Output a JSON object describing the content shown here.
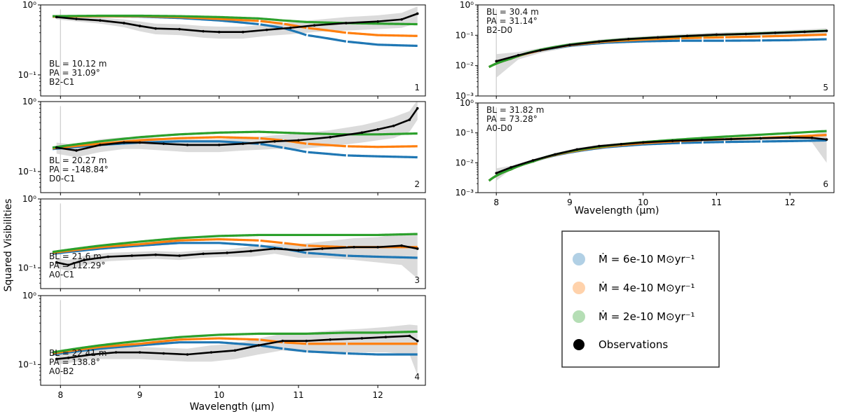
{
  "figure": {
    "ylabel": "Squared Visibilities",
    "xlabel_left": "Wavelength (μm)",
    "xlabel_right": "Wavelength (μm)"
  },
  "legend": {
    "entries": [
      {
        "label": "Ṁ = 6e-10 M⊙yr⁻¹",
        "color": "#1f77b4"
      },
      {
        "label": "Ṁ = 4e-10 M⊙yr⁻¹",
        "color": "#ff7f0e"
      },
      {
        "label": "Ṁ = 2e-10 M⊙yr⁻¹",
        "color": "#2ca02c"
      },
      {
        "label": "Observations",
        "color": "#000000"
      }
    ]
  },
  "chart_data": [
    {
      "type": "line",
      "panel": "1",
      "column": "left",
      "yscale": "log",
      "ylim": [
        0.05,
        1.0
      ],
      "xlim": [
        7.75,
        12.6
      ],
      "yticks": [
        {
          "v": 1.0,
          "label": "10⁰"
        },
        {
          "v": 0.1,
          "label": "10⁻¹"
        }
      ],
      "xticks": [],
      "annotation": [
        "BL = 10.12 m",
        "PA = 31.09°",
        "B2-C1"
      ],
      "series": [
        {
          "name": "Ṁ = 6e-10 M⊙yr⁻¹",
          "x": [
            7.9,
            8.5,
            9.0,
            9.5,
            10.0,
            10.5,
            10.8,
            11.1,
            11.6,
            12.0,
            12.5
          ],
          "y": [
            0.68,
            0.69,
            0.68,
            0.65,
            0.6,
            0.53,
            0.47,
            0.37,
            0.3,
            0.27,
            0.26
          ]
        },
        {
          "name": "Ṁ = 4e-10 M⊙yr⁻¹",
          "x": [
            7.9,
            8.5,
            9.0,
            9.5,
            10.0,
            10.5,
            10.8,
            11.1,
            11.6,
            12.0,
            12.5
          ],
          "y": [
            0.68,
            0.69,
            0.69,
            0.67,
            0.63,
            0.59,
            0.54,
            0.47,
            0.4,
            0.37,
            0.36
          ]
        },
        {
          "name": "Ṁ = 2e-10 M⊙yr⁻¹",
          "x": [
            7.9,
            8.5,
            9.0,
            9.5,
            10.0,
            10.5,
            10.8,
            11.1,
            11.6,
            12.0,
            12.5
          ],
          "y": [
            0.69,
            0.7,
            0.7,
            0.69,
            0.67,
            0.64,
            0.6,
            0.57,
            0.55,
            0.54,
            0.53
          ]
        },
        {
          "name": "Observations",
          "x": [
            7.95,
            8.2,
            8.5,
            8.8,
            9.0,
            9.2,
            9.5,
            9.8,
            10.0,
            10.3,
            10.6,
            10.9,
            11.2,
            11.6,
            12.0,
            12.3,
            12.5
          ],
          "y": [
            0.67,
            0.63,
            0.6,
            0.55,
            0.5,
            0.46,
            0.45,
            0.42,
            0.41,
            0.41,
            0.44,
            0.47,
            0.51,
            0.55,
            0.58,
            0.62,
            0.75
          ],
          "err": [
            0.05,
            0.05,
            0.06,
            0.07,
            0.08,
            0.08,
            0.08,
            0.08,
            0.08,
            0.08,
            0.08,
            0.09,
            0.1,
            0.12,
            0.13,
            0.15,
            0.2
          ]
        }
      ]
    },
    {
      "type": "line",
      "panel": "2",
      "column": "left",
      "yscale": "log",
      "ylim": [
        0.05,
        1.0
      ],
      "xlim": [
        7.75,
        12.6
      ],
      "yticks": [
        {
          "v": 1.0,
          "label": "10⁰"
        },
        {
          "v": 0.1,
          "label": "10⁻¹"
        }
      ],
      "xticks": [],
      "annotation": [
        "BL = 20.27 m",
        "PA = -148.84°",
        "D0-C1"
      ],
      "series": [
        {
          "name": "Ṁ = 6e-10 M⊙yr⁻¹",
          "x": [
            7.9,
            8.5,
            9.0,
            9.5,
            10.0,
            10.5,
            10.8,
            11.1,
            11.6,
            12.0,
            12.5
          ],
          "y": [
            0.21,
            0.24,
            0.26,
            0.27,
            0.27,
            0.25,
            0.22,
            0.19,
            0.17,
            0.165,
            0.16
          ]
        },
        {
          "name": "Ṁ = 4e-10 M⊙yr⁻¹",
          "x": [
            7.9,
            8.5,
            9.0,
            9.5,
            10.0,
            10.5,
            10.8,
            11.1,
            11.6,
            12.0,
            12.5
          ],
          "y": [
            0.215,
            0.25,
            0.28,
            0.3,
            0.31,
            0.3,
            0.28,
            0.25,
            0.23,
            0.225,
            0.23
          ]
        },
        {
          "name": "Ṁ = 2e-10 M⊙yr⁻¹",
          "x": [
            7.9,
            8.5,
            9.0,
            9.5,
            10.0,
            10.5,
            10.8,
            11.1,
            11.6,
            12.0,
            12.5
          ],
          "y": [
            0.22,
            0.27,
            0.31,
            0.34,
            0.36,
            0.37,
            0.36,
            0.35,
            0.34,
            0.34,
            0.35
          ]
        },
        {
          "name": "Observations",
          "x": [
            7.95,
            8.2,
            8.5,
            8.8,
            9.0,
            9.3,
            9.6,
            10.0,
            10.3,
            10.7,
            11.0,
            11.4,
            11.8,
            12.0,
            12.2,
            12.4,
            12.5
          ],
          "y": [
            0.22,
            0.2,
            0.24,
            0.26,
            0.26,
            0.25,
            0.24,
            0.24,
            0.25,
            0.27,
            0.28,
            0.31,
            0.36,
            0.4,
            0.45,
            0.55,
            0.8
          ],
          "err": [
            0.04,
            0.04,
            0.05,
            0.05,
            0.05,
            0.05,
            0.05,
            0.05,
            0.05,
            0.06,
            0.07,
            0.08,
            0.1,
            0.12,
            0.15,
            0.18,
            0.25
          ]
        }
      ]
    },
    {
      "type": "line",
      "panel": "3",
      "column": "left",
      "yscale": "log",
      "ylim": [
        0.05,
        1.0
      ],
      "xlim": [
        7.75,
        12.6
      ],
      "yticks": [
        {
          "v": 1.0,
          "label": "10⁰"
        },
        {
          "v": 0.1,
          "label": "10⁻¹"
        }
      ],
      "xticks": [],
      "annotation": [
        "BL = 21.6 m",
        "PA = 112.29°",
        "A0-C1"
      ],
      "series": [
        {
          "name": "Ṁ = 6e-10 M⊙yr⁻¹",
          "x": [
            7.9,
            8.5,
            9.0,
            9.5,
            10.0,
            10.5,
            10.8,
            11.1,
            11.6,
            12.0,
            12.5
          ],
          "y": [
            0.16,
            0.19,
            0.21,
            0.23,
            0.23,
            0.21,
            0.19,
            0.165,
            0.15,
            0.145,
            0.14
          ]
        },
        {
          "name": "Ṁ = 4e-10 M⊙yr⁻¹",
          "x": [
            7.9,
            8.5,
            9.0,
            9.5,
            10.0,
            10.5,
            10.8,
            11.1,
            11.6,
            12.0,
            12.5
          ],
          "y": [
            0.165,
            0.2,
            0.22,
            0.25,
            0.26,
            0.25,
            0.23,
            0.21,
            0.2,
            0.2,
            0.2
          ]
        },
        {
          "name": "Ṁ = 2e-10 M⊙yr⁻¹",
          "x": [
            7.9,
            8.5,
            9.0,
            9.5,
            10.0,
            10.5,
            10.8,
            11.1,
            11.6,
            12.0,
            12.5
          ],
          "y": [
            0.17,
            0.21,
            0.24,
            0.27,
            0.29,
            0.3,
            0.3,
            0.3,
            0.3,
            0.3,
            0.31
          ]
        },
        {
          "name": "Observations",
          "x": [
            7.95,
            8.1,
            8.3,
            8.6,
            8.9,
            9.2,
            9.5,
            9.8,
            10.1,
            10.4,
            10.7,
            11.0,
            11.3,
            11.7,
            12.0,
            12.3,
            12.5
          ],
          "y": [
            0.12,
            0.11,
            0.13,
            0.145,
            0.15,
            0.155,
            0.15,
            0.16,
            0.165,
            0.175,
            0.19,
            0.18,
            0.19,
            0.2,
            0.2,
            0.21,
            0.19
          ],
          "err": [
            0.02,
            0.02,
            0.02,
            0.02,
            0.02,
            0.02,
            0.02,
            0.02,
            0.02,
            0.03,
            0.03,
            0.04,
            0.05,
            0.07,
            0.08,
            0.1,
            0.12
          ]
        }
      ]
    },
    {
      "type": "line",
      "panel": "4",
      "column": "left",
      "yscale": "log",
      "ylim": [
        0.05,
        1.0
      ],
      "xlim": [
        7.75,
        12.6
      ],
      "yticks": [
        {
          "v": 1.0,
          "label": "10⁰"
        },
        {
          "v": 0.1,
          "label": "10⁻¹"
        }
      ],
      "xticks": [
        {
          "v": 8,
          "label": "8"
        },
        {
          "v": 9,
          "label": "9"
        },
        {
          "v": 10,
          "label": "10"
        },
        {
          "v": 11,
          "label": "11"
        },
        {
          "v": 12,
          "label": "12"
        }
      ],
      "annotation": [
        "BL = 22.41 m",
        "PA = 138.8°",
        "A0-B2"
      ],
      "series": [
        {
          "name": "Ṁ = 6e-10 M⊙yr⁻¹",
          "x": [
            7.9,
            8.5,
            9.0,
            9.5,
            10.0,
            10.5,
            10.8,
            11.1,
            11.6,
            12.0,
            12.5
          ],
          "y": [
            0.14,
            0.17,
            0.19,
            0.21,
            0.21,
            0.19,
            0.17,
            0.155,
            0.145,
            0.14,
            0.14
          ]
        },
        {
          "name": "Ṁ = 4e-10 M⊙yr⁻¹",
          "x": [
            7.9,
            8.5,
            9.0,
            9.5,
            10.0,
            10.5,
            10.8,
            11.1,
            11.6,
            12.0,
            12.5
          ],
          "y": [
            0.145,
            0.18,
            0.2,
            0.23,
            0.24,
            0.23,
            0.21,
            0.2,
            0.2,
            0.2,
            0.2
          ]
        },
        {
          "name": "Ṁ = 2e-10 M⊙yr⁻¹",
          "x": [
            7.9,
            8.5,
            9.0,
            9.5,
            10.0,
            10.5,
            10.8,
            11.1,
            11.6,
            12.0,
            12.5
          ],
          "y": [
            0.15,
            0.19,
            0.22,
            0.25,
            0.27,
            0.28,
            0.28,
            0.28,
            0.29,
            0.29,
            0.3
          ]
        },
        {
          "name": "Observations",
          "x": [
            7.95,
            8.1,
            8.4,
            8.7,
            9.0,
            9.3,
            9.6,
            9.9,
            10.2,
            10.5,
            10.8,
            11.1,
            11.4,
            11.8,
            12.1,
            12.4,
            12.5
          ],
          "y": [
            0.12,
            0.125,
            0.14,
            0.15,
            0.15,
            0.145,
            0.14,
            0.15,
            0.16,
            0.19,
            0.22,
            0.22,
            0.23,
            0.24,
            0.25,
            0.26,
            0.22
          ],
          "err": [
            0.02,
            0.02,
            0.02,
            0.03,
            0.03,
            0.03,
            0.03,
            0.04,
            0.04,
            0.05,
            0.06,
            0.07,
            0.08,
            0.09,
            0.1,
            0.12,
            0.15
          ]
        }
      ]
    },
    {
      "type": "line",
      "panel": "5",
      "column": "right",
      "yscale": "log",
      "ylim": [
        0.001,
        1.0
      ],
      "xlim": [
        7.75,
        12.6
      ],
      "yticks": [
        {
          "v": 1.0,
          "label": "10⁰"
        },
        {
          "v": 0.1,
          "label": "10⁻¹"
        },
        {
          "v": 0.01,
          "label": "10⁻²"
        },
        {
          "v": 0.001,
          "label": "10⁻³"
        }
      ],
      "xticks": [],
      "annotation": [
        "BL = 30.4 m",
        "PA = 31.14°",
        "B2-D0"
      ],
      "series": [
        {
          "name": "Ṁ = 6e-10 M⊙yr⁻¹",
          "x": [
            7.9,
            8.2,
            8.5,
            9.0,
            9.5,
            10.0,
            10.5,
            11.0,
            11.5,
            12.0,
            12.5
          ],
          "y": [
            0.009,
            0.017,
            0.028,
            0.045,
            0.057,
            0.063,
            0.066,
            0.066,
            0.067,
            0.069,
            0.074
          ]
        },
        {
          "name": "Ṁ = 4e-10 M⊙yr⁻¹",
          "x": [
            7.9,
            8.2,
            8.5,
            9.0,
            9.5,
            10.0,
            10.5,
            11.0,
            11.5,
            12.0,
            12.5
          ],
          "y": [
            0.009,
            0.017,
            0.028,
            0.047,
            0.062,
            0.072,
            0.08,
            0.085,
            0.09,
            0.096,
            0.105
          ]
        },
        {
          "name": "Ṁ = 2e-10 M⊙yr⁻¹",
          "x": [
            7.9,
            8.2,
            8.5,
            9.0,
            9.5,
            10.0,
            10.5,
            11.0,
            11.5,
            12.0,
            12.5
          ],
          "y": [
            0.009,
            0.017,
            0.029,
            0.049,
            0.066,
            0.08,
            0.092,
            0.103,
            0.113,
            0.125,
            0.14
          ]
        },
        {
          "name": "Observations",
          "x": [
            8.0,
            8.3,
            8.6,
            9.0,
            9.4,
            9.8,
            10.2,
            10.6,
            11.0,
            11.4,
            11.8,
            12.2,
            12.5
          ],
          "y": [
            0.014,
            0.022,
            0.032,
            0.048,
            0.062,
            0.075,
            0.085,
            0.095,
            0.105,
            0.11,
            0.12,
            0.13,
            0.14
          ],
          "err": [
            0.01,
            0.006,
            0.006,
            0.008,
            0.01,
            0.012,
            0.014,
            0.016,
            0.018,
            0.02,
            0.022,
            0.025,
            0.03
          ]
        }
      ]
    },
    {
      "type": "line",
      "panel": "6",
      "column": "right",
      "yscale": "log",
      "ylim": [
        0.001,
        1.0
      ],
      "xlim": [
        7.75,
        12.6
      ],
      "yticks": [
        {
          "v": 1.0,
          "label": "10⁰"
        },
        {
          "v": 0.1,
          "label": "10⁻¹"
        },
        {
          "v": 0.01,
          "label": "10⁻²"
        },
        {
          "v": 0.001,
          "label": "10⁻³"
        }
      ],
      "xticks": [
        {
          "v": 8,
          "label": "8"
        },
        {
          "v": 9,
          "label": "9"
        },
        {
          "v": 10,
          "label": "10"
        },
        {
          "v": 11,
          "label": "11"
        },
        {
          "v": 12,
          "label": "12"
        }
      ],
      "annotation": [
        "BL = 31.82 m",
        "PA = 73.28°",
        "A0-D0"
      ],
      "series": [
        {
          "name": "Ṁ = 6e-10 M⊙yr⁻¹",
          "x": [
            7.9,
            8.2,
            8.5,
            9.0,
            9.5,
            10.0,
            10.5,
            11.0,
            11.5,
            12.0,
            12.5
          ],
          "y": [
            0.0025,
            0.006,
            0.011,
            0.022,
            0.033,
            0.041,
            0.046,
            0.049,
            0.051,
            0.053,
            0.056
          ]
        },
        {
          "name": "Ṁ = 4e-10 M⊙yr⁻¹",
          "x": [
            7.9,
            8.2,
            8.5,
            9.0,
            9.5,
            10.0,
            10.5,
            11.0,
            11.5,
            12.0,
            12.5
          ],
          "y": [
            0.0025,
            0.006,
            0.011,
            0.023,
            0.035,
            0.045,
            0.053,
            0.06,
            0.066,
            0.074,
            0.085
          ]
        },
        {
          "name": "Ṁ = 2e-10 M⊙yr⁻¹",
          "x": [
            7.9,
            8.2,
            8.5,
            9.0,
            9.5,
            10.0,
            10.5,
            11.0,
            11.5,
            12.0,
            12.5
          ],
          "y": [
            0.0025,
            0.006,
            0.011,
            0.024,
            0.037,
            0.049,
            0.06,
            0.072,
            0.084,
            0.098,
            0.115
          ]
        },
        {
          "name": "Observations",
          "x": [
            8.0,
            8.2,
            8.5,
            8.8,
            9.1,
            9.4,
            9.7,
            10.0,
            10.4,
            10.8,
            11.2,
            11.6,
            12.0,
            12.3,
            12.5
          ],
          "y": [
            0.0045,
            0.007,
            0.012,
            0.019,
            0.028,
            0.036,
            0.042,
            0.048,
            0.054,
            0.058,
            0.062,
            0.066,
            0.07,
            0.068,
            0.06
          ],
          "err": [
            0.002,
            0.001,
            0.001,
            0.002,
            0.003,
            0.004,
            0.004,
            0.005,
            0.005,
            0.006,
            0.007,
            0.009,
            0.012,
            0.02,
            0.05
          ]
        }
      ]
    }
  ]
}
